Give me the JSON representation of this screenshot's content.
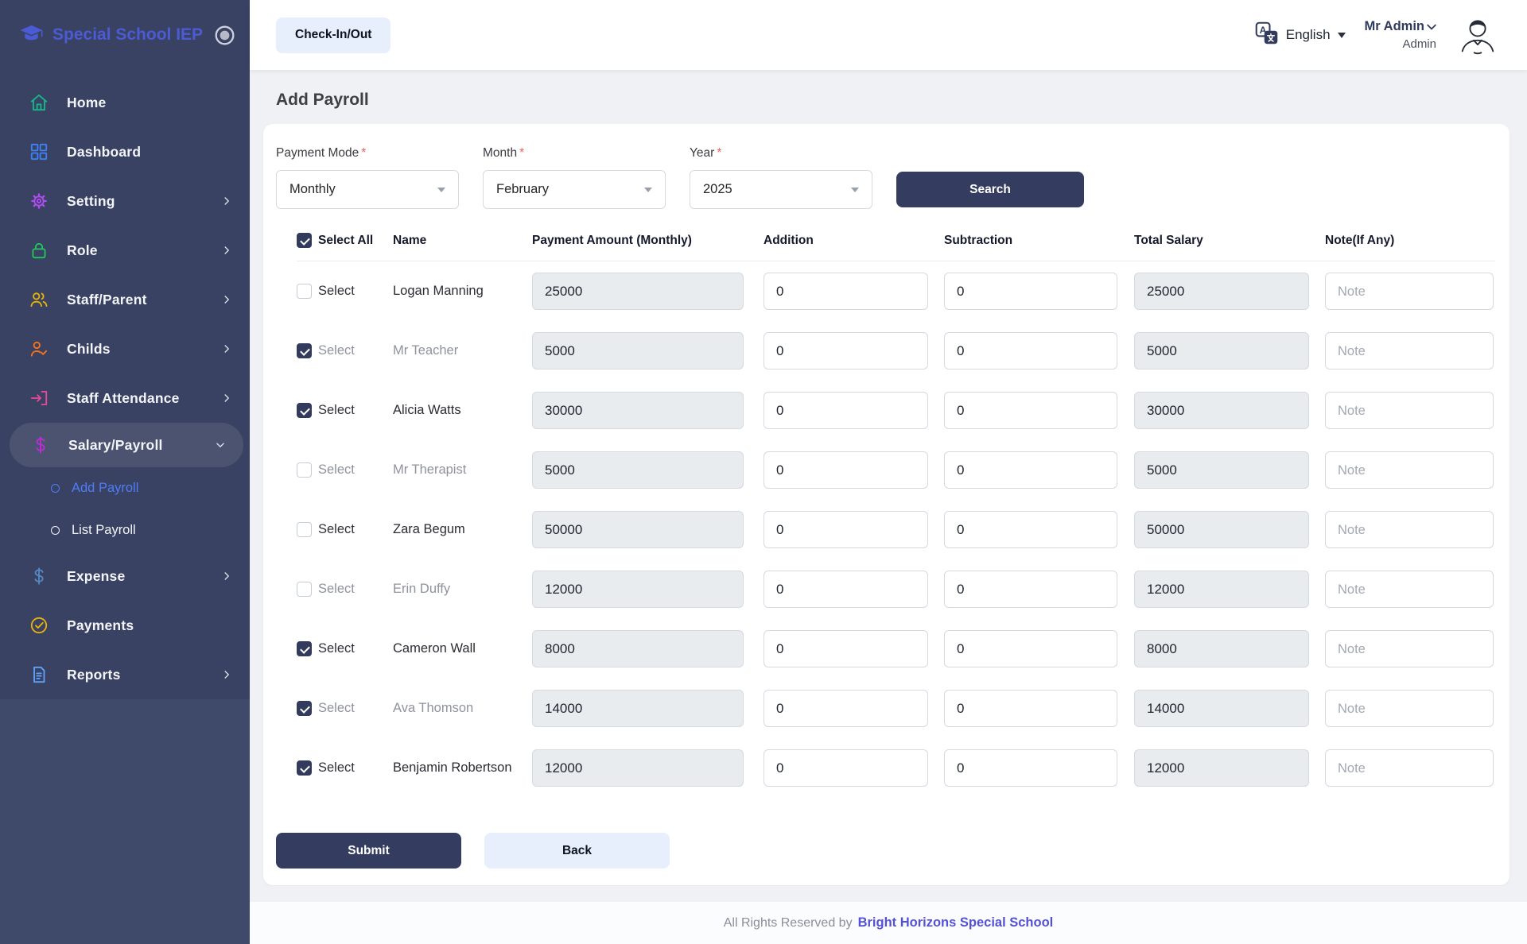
{
  "brand": {
    "name": "Special School IEP"
  },
  "header": {
    "checkin_label": "Check-In/Out",
    "language": "English",
    "user_name": "Mr Admin",
    "user_role": "Admin"
  },
  "sidebar": {
    "items": [
      {
        "label": "Home",
        "icon": "home-icon",
        "icon_color": "#15b888",
        "chevron": "none",
        "active": false
      },
      {
        "label": "Dashboard",
        "icon": "dashboard-icon",
        "icon_color": "#3b82f6",
        "chevron": "none",
        "active": false
      },
      {
        "label": "Setting",
        "icon": "gear-icon",
        "icon_color": "#b14bf4",
        "chevron": "right",
        "active": false
      },
      {
        "label": "Role",
        "icon": "lock-icon",
        "icon_color": "#22c55e",
        "chevron": "right",
        "active": false
      },
      {
        "label": "Staff/Parent",
        "icon": "people-icon",
        "icon_color": "#eab308",
        "chevron": "right",
        "active": false
      },
      {
        "label": "Childs",
        "icon": "person-check-icon",
        "icon_color": "#f97316",
        "chevron": "right",
        "active": false
      },
      {
        "label": "Staff Attendance",
        "icon": "login-icon",
        "icon_color": "#ec4899",
        "chevron": "right",
        "active": false
      },
      {
        "label": "Salary/Payroll",
        "icon": "dollar-icon",
        "icon_color": "#bb2ed3",
        "chevron": "down",
        "active": true,
        "children": [
          {
            "label": "Add Payroll",
            "active": true
          },
          {
            "label": "List Payroll",
            "active": false
          }
        ]
      },
      {
        "label": "Expense",
        "icon": "expense-dollar-icon",
        "icon_color": "#5589c2",
        "chevron": "right",
        "active": false
      },
      {
        "label": "Payments",
        "icon": "check-circle-icon",
        "icon_color": "#eab308",
        "chevron": "none",
        "active": false
      },
      {
        "label": "Reports",
        "icon": "report-icon",
        "icon_color": "#5ea1f7",
        "chevron": "right",
        "active": false
      }
    ]
  },
  "page": {
    "title": "Add Payroll"
  },
  "filters": {
    "required_marker": "*",
    "payment_mode": {
      "label": "Payment Mode",
      "value": "Monthly"
    },
    "month": {
      "label": "Month",
      "value": "February"
    },
    "year": {
      "label": "2025 Year",
      "value": "2025"
    },
    "year_label": "Year",
    "search_label": "Search"
  },
  "table": {
    "select_all_label": "Select All",
    "select_all_checked": true,
    "row_select_label": "Select",
    "headers": [
      "Name",
      "Payment Amount (Monthly)",
      "Addition",
      "Subtraction",
      "Total Salary",
      "Note(If Any)"
    ],
    "rows": [
      {
        "name": "Logan Manning",
        "selected": false,
        "muted": false,
        "payment": "25000",
        "addition": "0",
        "subtraction": "0",
        "total": "25000",
        "note_placeholder": "Note"
      },
      {
        "name": "Mr Teacher",
        "selected": true,
        "muted": true,
        "payment": "5000",
        "addition": "0",
        "subtraction": "0",
        "total": "5000",
        "note_placeholder": "Note"
      },
      {
        "name": "Alicia Watts",
        "selected": true,
        "muted": false,
        "payment": "30000",
        "addition": "0",
        "subtraction": "0",
        "total": "30000",
        "note_placeholder": "Note"
      },
      {
        "name": "Mr Therapist",
        "selected": false,
        "muted": true,
        "payment": "5000",
        "addition": "0",
        "subtraction": "0",
        "total": "5000",
        "note_placeholder": "Note"
      },
      {
        "name": "Zara Begum",
        "selected": false,
        "muted": false,
        "payment": "50000",
        "addition": "0",
        "subtraction": "0",
        "total": "50000",
        "note_placeholder": "Note"
      },
      {
        "name": "Erin Duffy",
        "selected": false,
        "muted": true,
        "payment": "12000",
        "addition": "0",
        "subtraction": "0",
        "total": "12000",
        "note_placeholder": "Note"
      },
      {
        "name": "Cameron Wall",
        "selected": true,
        "muted": false,
        "payment": "8000",
        "addition": "0",
        "subtraction": "0",
        "total": "8000",
        "note_placeholder": "Note"
      },
      {
        "name": "Ava Thomson",
        "selected": true,
        "muted": true,
        "payment": "14000",
        "addition": "0",
        "subtraction": "0",
        "total": "14000",
        "note_placeholder": "Note"
      },
      {
        "name": "Benjamin Robertson",
        "selected": true,
        "muted": false,
        "payment": "12000",
        "addition": "0",
        "subtraction": "0",
        "total": "12000",
        "note_placeholder": "Note"
      }
    ]
  },
  "actions": {
    "submit": "Submit",
    "back": "Back"
  },
  "footer": {
    "prefix": "All Rights Reserved by",
    "brand": "Bright Horizons Special School"
  },
  "colors": {
    "sidebar_bg": "#3a4263",
    "sidebar_lower_bg": "#3f4969",
    "active_link_blue": "#4d7df7",
    "logo_blue": "#4a5bd4",
    "primary_dark": "#343d5f",
    "light_button_bg": "#e7effc",
    "footer_brand": "#5451d8",
    "disabled_input_bg": "#e9ecef",
    "required_red": "#f25c5c",
    "muted_text": "#8f929e"
  }
}
